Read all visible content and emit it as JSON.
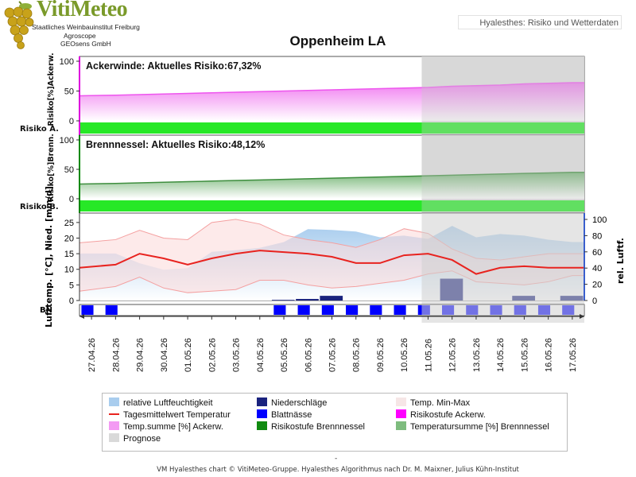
{
  "logo": {
    "title": "VitiMeteo",
    "line1": "Staatliches Weinbauinstitut Freiburg",
    "line2": "Agroscope",
    "line3": "GEOsens GmbH",
    "grape_color": "#c8a21a"
  },
  "header": {
    "app_title": "Hyalesthes: Risiko und Wetterdaten",
    "location_title": "Oppenheim LA"
  },
  "footer": {
    "dash": "-",
    "credit": "VM Hyalesthes chart © VitiMeteo-Gruppe. Hyalesthes Algorithmus nach Dr. M. Maixner, Julius Kühn-Institut"
  },
  "legend": {
    "items": [
      {
        "label": "relative Luftfeuchtigkeit",
        "kind": "fill",
        "color": "#a9cdee"
      },
      {
        "label": "Niederschläge",
        "kind": "fill",
        "color": "#1a237e"
      },
      {
        "label": "Temp. Min-Max",
        "kind": "fill",
        "color": "#f6e6e6"
      },
      {
        "label": "Tagesmittelwert Temperatur",
        "kind": "line",
        "color": "#e8231f"
      },
      {
        "label": "Blattnässe",
        "kind": "fill",
        "color": "#0000ff"
      },
      {
        "label": "Risikostufe Ackerw.",
        "kind": "fill",
        "color": "#ff00ff"
      },
      {
        "label": "Temp.summe [%] Ackerw.",
        "kind": "fill",
        "color": "#f39af3"
      },
      {
        "label": "Risikostufe Brennnessel",
        "kind": "fill",
        "color": "#108a10"
      },
      {
        "label": "Temperatursumme [%] Brennnessel",
        "kind": "fill",
        "color": "#7ebc7e"
      },
      {
        "label": "Prognose",
        "kind": "fill",
        "color": "#d9d9d9"
      }
    ]
  },
  "chart_data": [
    {
      "type": "area",
      "title": "Ackerwinde:  Aktuelles Risiko:67,32%",
      "ylabel": "Risiko[%]Ackerw.",
      "risk_row_label": "Risiko A.",
      "ylim": [
        0,
        100
      ],
      "yticks": [
        0,
        50,
        100
      ],
      "x": [
        "27.04.26",
        "28.04.26",
        "29.04.26",
        "30.04.26",
        "01.05.26",
        "02.05.26",
        "03.05.26",
        "04.05.26",
        "05.05.26",
        "06.05.26",
        "07.05.26",
        "08.05.26",
        "09.05.26",
        "10.05.26",
        "11.05.26",
        "12.05.26",
        "13.05.26",
        "14.05.26",
        "15.05.26",
        "16.05.26",
        "17.05.26"
      ],
      "series": [
        {
          "name": "Temp.summe [%] Ackerw.",
          "values": [
            42,
            43,
            44,
            45,
            46,
            47,
            48,
            49,
            50,
            51,
            52,
            53,
            54,
            55,
            56,
            58,
            59,
            60,
            62,
            63,
            64
          ]
        },
        {
          "name": "Risikostufe Ackerw.",
          "level": "green"
        }
      ],
      "prognose_from": "11.05.26",
      "colors": {
        "fill": "#f39af3",
        "line": "#ee55ee",
        "risk_bar": "#27e827",
        "axis_accent": "#dd00dd"
      }
    },
    {
      "type": "area",
      "title": "Brennnessel:  Aktuelles Risiko:48,12%",
      "ylabel": "Risiko[%]Brenn.",
      "risk_row_label": "Risiko B.",
      "ylim": [
        0,
        100
      ],
      "yticks": [
        0,
        50,
        100
      ],
      "x": [
        "27.04.26",
        "28.04.26",
        "29.04.26",
        "30.04.26",
        "01.05.26",
        "02.05.26",
        "03.05.26",
        "04.05.26",
        "05.05.26",
        "06.05.26",
        "07.05.26",
        "08.05.26",
        "09.05.26",
        "10.05.26",
        "11.05.26",
        "12.05.26",
        "13.05.26",
        "14.05.26",
        "15.05.26",
        "16.05.26",
        "17.05.26"
      ],
      "series": [
        {
          "name": "Temperatursumme [%] Brennnessel",
          "values": [
            25,
            26,
            27,
            28,
            29,
            30,
            31,
            32,
            33,
            34,
            35,
            36,
            37,
            38,
            39,
            40,
            41,
            42,
            43,
            44,
            45
          ]
        },
        {
          "name": "Risikostufe Brennnessel",
          "level": "green"
        }
      ],
      "prognose_from": "11.05.26",
      "colors": {
        "fill": "#7ebc7e",
        "line": "#3e8e3e",
        "risk_bar": "#27e827",
        "axis_accent": "#008800"
      }
    },
    {
      "type": "line",
      "ylabel_left": "Lufttemp. [°C], Nied. [mm/d]",
      "ylabel_right": "rel. Luftf.",
      "bn_label": "BN",
      "ylim_left": [
        0,
        27
      ],
      "yticks_left": [
        0,
        5,
        10,
        15,
        20,
        25
      ],
      "ylim_right": [
        0,
        100
      ],
      "yticks_right": [
        0,
        20,
        40,
        60,
        80,
        100
      ],
      "x": [
        "27.04.26",
        "28.04.26",
        "29.04.26",
        "30.04.26",
        "01.05.26",
        "02.05.26",
        "03.05.26",
        "04.05.26",
        "05.05.26",
        "06.05.26",
        "07.05.26",
        "08.05.26",
        "09.05.26",
        "10.05.26",
        "11.05.26",
        "12.05.26",
        "13.05.26",
        "14.05.26",
        "15.05.26",
        "16.05.26",
        "17.05.26"
      ],
      "series": [
        {
          "name": "Tagesmittelwert Temperatur",
          "values": [
            10.5,
            11.5,
            15.0,
            13.5,
            11.5,
            13.5,
            15.0,
            16.0,
            15.5,
            15.0,
            14.0,
            12.0,
            12.0,
            14.5,
            15.0,
            13.0,
            8.5,
            10.5,
            11.0,
            10.5,
            10.5
          ]
        },
        {
          "name": "Temp. Min-Max",
          "min": [
            3,
            4.5,
            7.5,
            4,
            2.5,
            3,
            3.5,
            6.5,
            6.5,
            5,
            4,
            4.5,
            5.5,
            6.5,
            8.5,
            9.5,
            6,
            5.5,
            5,
            6,
            8
          ],
          "max": [
            18.5,
            19.5,
            22.5,
            20,
            19.5,
            25,
            26,
            24.5,
            21,
            19.5,
            18.5,
            17,
            19.5,
            23,
            21.5,
            16.5,
            13.5,
            13,
            14,
            15,
            15
          ]
        },
        {
          "name": "relative Luftfeuchtigkeit",
          "values": [
            58,
            58,
            46,
            38,
            40,
            60,
            62,
            65,
            72,
            88,
            87,
            85,
            78,
            80,
            76,
            92,
            78,
            82,
            80,
            75,
            72
          ]
        },
        {
          "name": "Niederschläge",
          "values": [
            0,
            0,
            0,
            0,
            0,
            0,
            0,
            0,
            0.2,
            0.5,
            1.5,
            0,
            0,
            0,
            0,
            7,
            0,
            0,
            1.5,
            0,
            1.5
          ]
        },
        {
          "name": "Blattnässe",
          "values": [
            1,
            1,
            0,
            0,
            0,
            0,
            0,
            0,
            1,
            1,
            1,
            1,
            1,
            1,
            1,
            1,
            1,
            1,
            1,
            1,
            1
          ]
        }
      ],
      "prognose_from": "11.05.26",
      "colors": {
        "temp_line": "#e8231f",
        "minmax_fill": "#fbd8d8",
        "minmax_line": "#f4a0a0",
        "rh_fill": "#a9cdee",
        "rain": "#1a237e",
        "leaf_wet": "#0000ff",
        "prognose": "#d9d9d9"
      }
    }
  ]
}
